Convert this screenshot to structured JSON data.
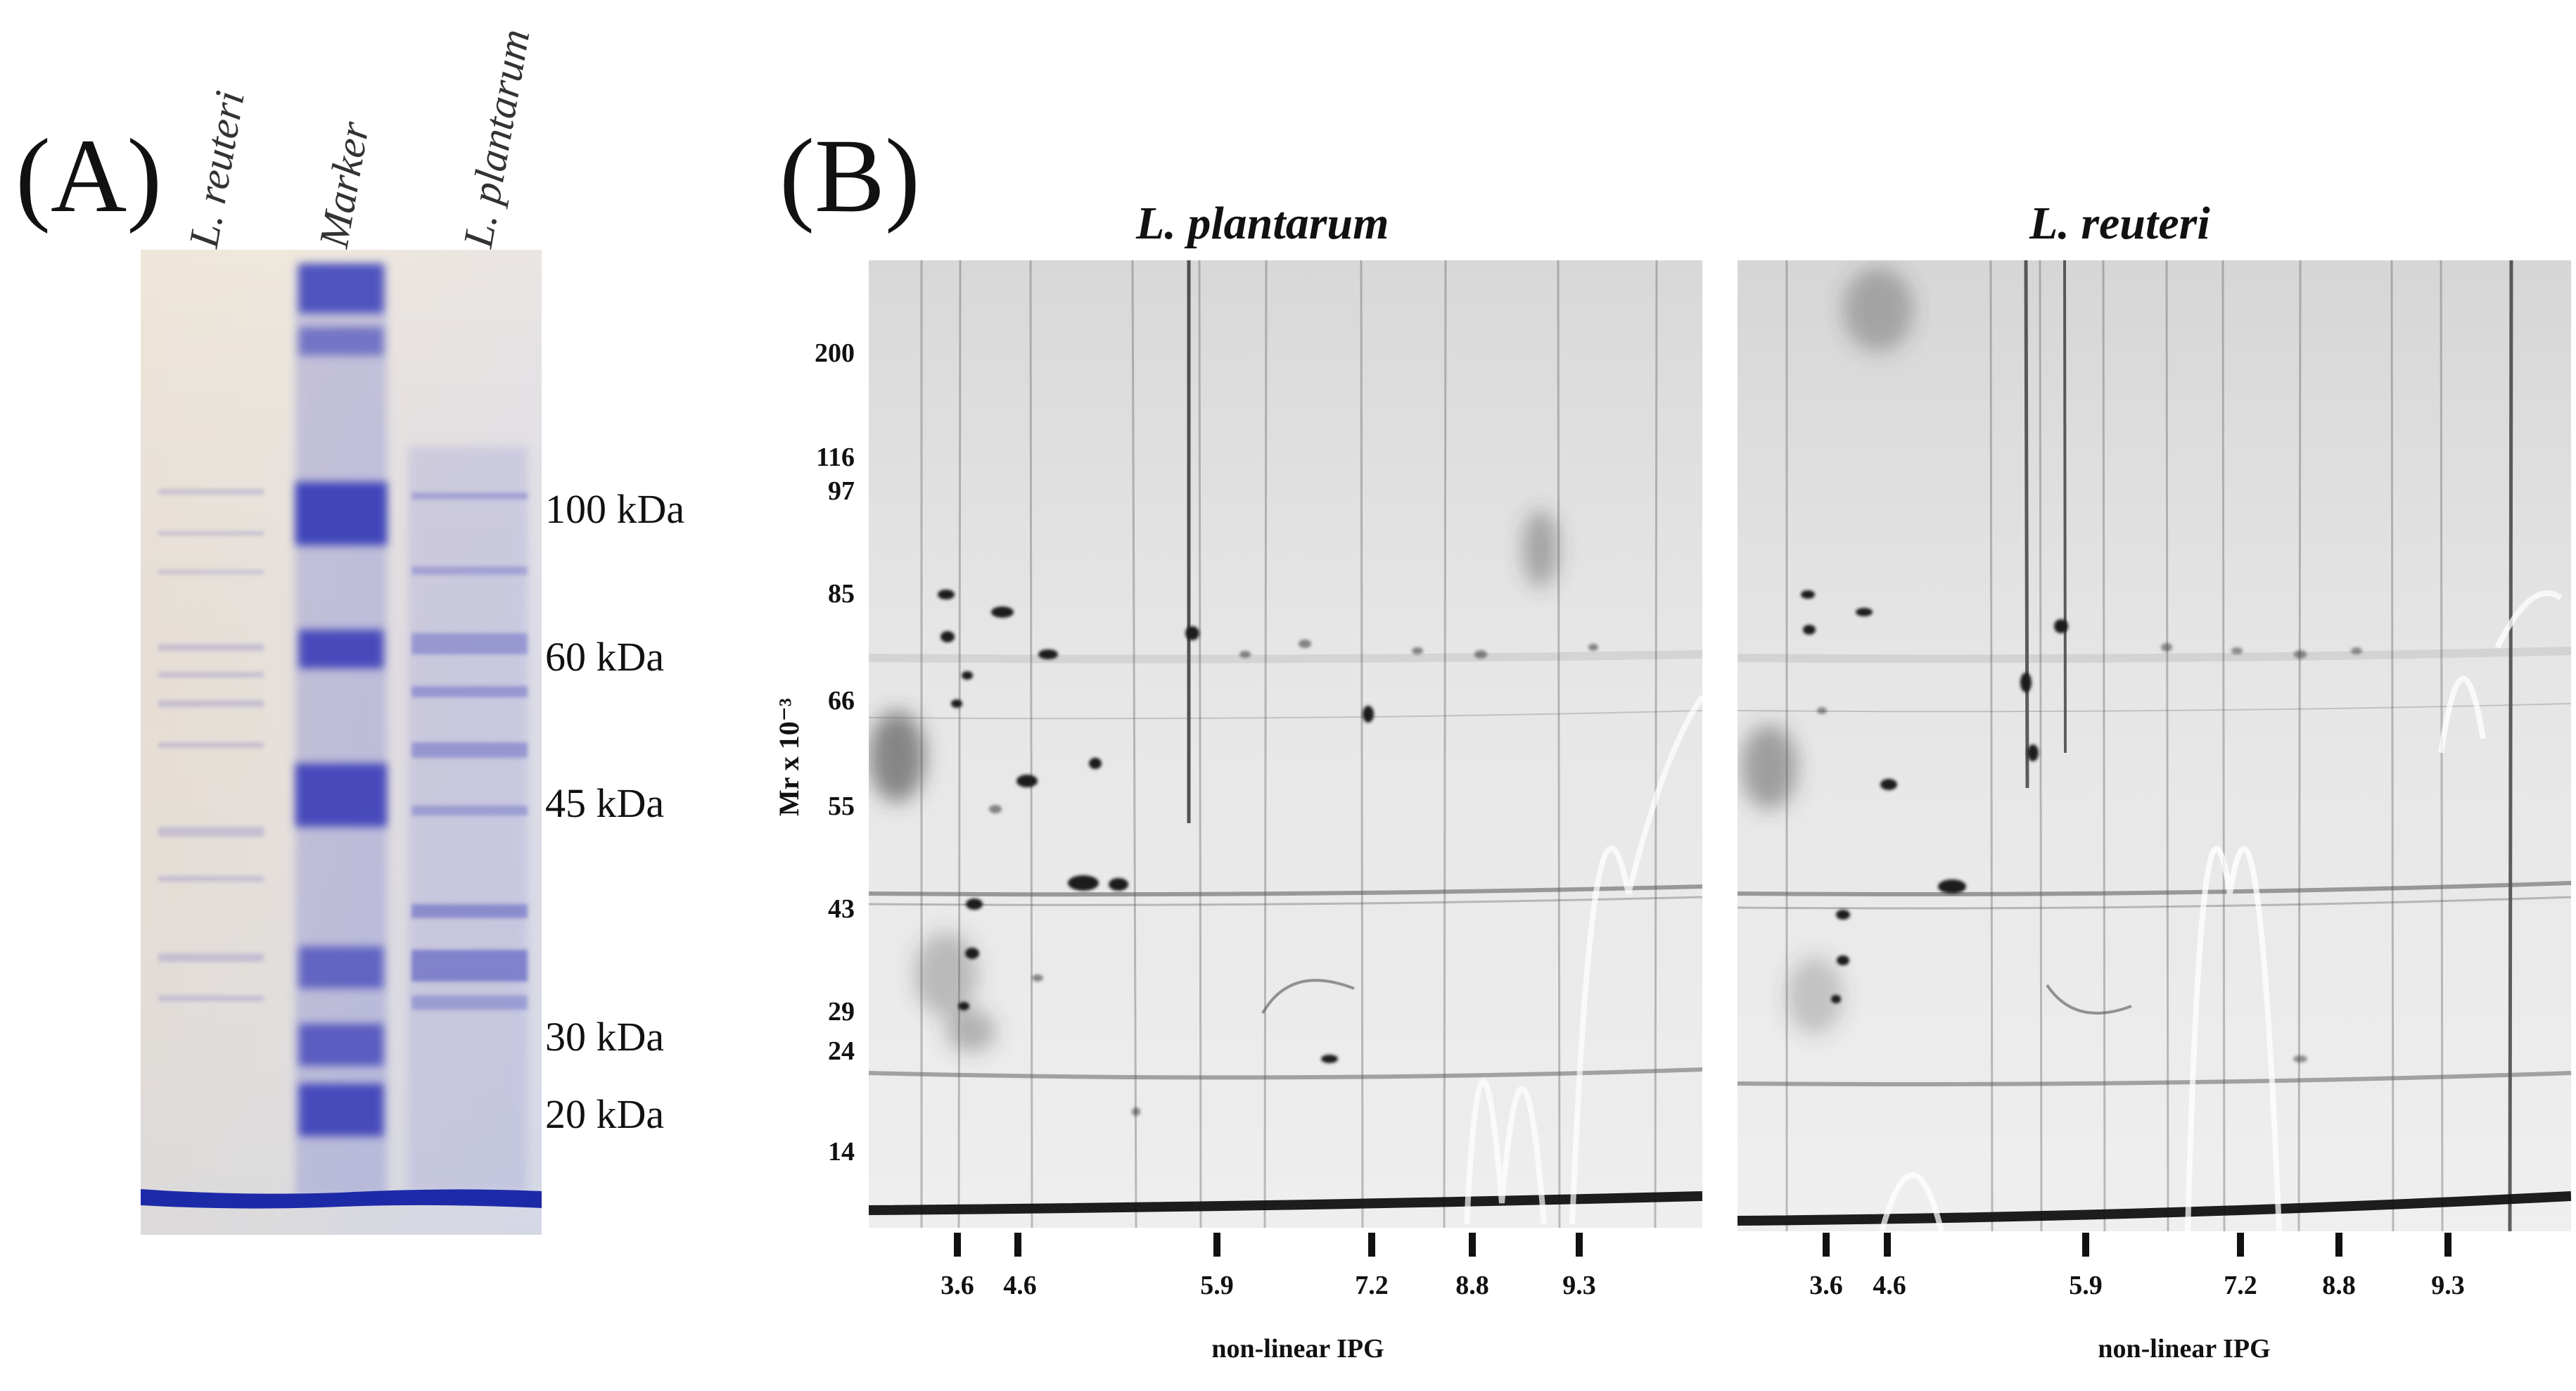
{
  "panel_a": {
    "letter": "(A)",
    "lanes": [
      "L. reuteri",
      "Marker",
      "L. plantarum"
    ],
    "markers": [
      "100 kDa",
      "60 kDa",
      "45 kDa",
      "30 kDa",
      "20 kDa"
    ]
  },
  "panel_b": {
    "letter": "(B)",
    "y_axis_title": "Mr x 10⁻³",
    "mr_ticks": [
      "200",
      "116",
      "97",
      "85",
      "66",
      "55",
      "43",
      "29",
      "24",
      "14"
    ],
    "gels": [
      {
        "title": "L. plantarum",
        "ph_ticks": [
          "3.6",
          "4.6",
          "5.9",
          "7.2",
          "8.8",
          "9.3"
        ],
        "x_axis_title": "non-linear IPG"
      },
      {
        "title": "L. reuteri",
        "ph_ticks": [
          "3.6",
          "4.6",
          "5.9",
          "7.2",
          "8.8",
          "9.3"
        ],
        "x_axis_title": "non-linear IPG"
      }
    ]
  },
  "colors": {
    "coomassie": "#3a3fb8",
    "gel_bg": "#e9eae9",
    "spot": "#222222"
  }
}
